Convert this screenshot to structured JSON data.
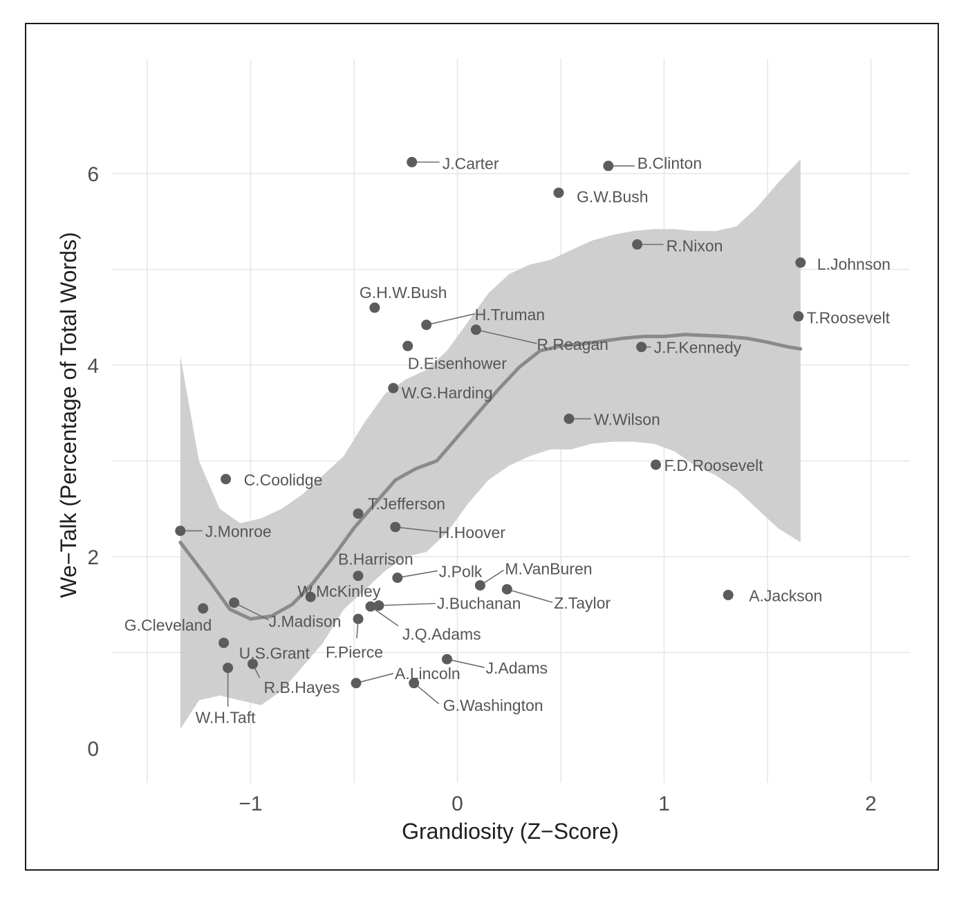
{
  "chart_data": {
    "type": "scatter",
    "title": "",
    "xlabel": "Grandiosity (Z−Score)",
    "ylabel": "We−Talk (Percentage of Total Words)",
    "xlim": [
      -1.5,
      2.2
    ],
    "ylim": [
      -0.6,
      7.0
    ],
    "x_ticks": [
      -1,
      0,
      1,
      2
    ],
    "x_tick_labels": [
      "−1",
      "0",
      "1",
      "2"
    ],
    "y_ticks": [
      0,
      2,
      4,
      6
    ],
    "y_tick_labels": [
      "0",
      "2",
      "4",
      "6"
    ],
    "grid": true,
    "legend": "none",
    "points": [
      {
        "name": "J.Carter",
        "x": -0.22,
        "y": 6.12
      },
      {
        "name": "B.Clinton",
        "x": 0.73,
        "y": 6.08
      },
      {
        "name": "G.W.Bush",
        "x": 0.49,
        "y": 5.8
      },
      {
        "name": "R.Nixon",
        "x": 0.87,
        "y": 5.26
      },
      {
        "name": "L.Johnson",
        "x": 1.66,
        "y": 5.07
      },
      {
        "name": "T.Roosevelt",
        "x": 1.65,
        "y": 4.51
      },
      {
        "name": "G.H.W.Bush",
        "x": -0.4,
        "y": 4.6
      },
      {
        "name": "H.Truman",
        "x": -0.15,
        "y": 4.42
      },
      {
        "name": "R.Reagan",
        "x": 0.09,
        "y": 4.37
      },
      {
        "name": "D.Eisenhower",
        "x": -0.24,
        "y": 4.2
      },
      {
        "name": "J.F.Kennedy",
        "x": 0.89,
        "y": 4.19
      },
      {
        "name": "W.G.Harding",
        "x": -0.31,
        "y": 3.76
      },
      {
        "name": "W.Wilson",
        "x": 0.54,
        "y": 3.44
      },
      {
        "name": "F.D.Roosevelt",
        "x": 0.96,
        "y": 2.96
      },
      {
        "name": "C.Coolidge",
        "x": -1.12,
        "y": 2.81
      },
      {
        "name": "T.Jefferson",
        "x": -0.48,
        "y": 2.45
      },
      {
        "name": "H.Hoover",
        "x": -0.3,
        "y": 2.31
      },
      {
        "name": "J.Monroe",
        "x": -1.34,
        "y": 2.27
      },
      {
        "name": "B.Harrison",
        "x": -0.48,
        "y": 1.8
      },
      {
        "name": "J.Polk",
        "x": -0.29,
        "y": 1.78
      },
      {
        "name": "M.VanBuren",
        "x": 0.11,
        "y": 1.7
      },
      {
        "name": "Z.Taylor",
        "x": 0.24,
        "y": 1.66
      },
      {
        "name": "A.Jackson",
        "x": 1.31,
        "y": 1.6
      },
      {
        "name": "W.McKinley",
        "x": -0.71,
        "y": 1.58
      },
      {
        "name": "J.Madison",
        "x": -1.08,
        "y": 1.52
      },
      {
        "name": "G.Cleveland",
        "x": -1.23,
        "y": 1.46
      },
      {
        "name": "J.Buchanan",
        "x": -0.38,
        "y": 1.49
      },
      {
        "name": "J.Q.Adams",
        "x": -0.42,
        "y": 1.48
      },
      {
        "name": "F.Pierce",
        "x": -0.48,
        "y": 1.35
      },
      {
        "name": "U.S.Grant",
        "x": -1.13,
        "y": 1.1
      },
      {
        "name": "J.Adams",
        "x": -0.05,
        "y": 0.93
      },
      {
        "name": "R.B.Hayes",
        "x": -0.99,
        "y": 0.88
      },
      {
        "name": "W.H.Taft",
        "x": -1.11,
        "y": 0.84
      },
      {
        "name": "A.Lincoln",
        "x": -0.49,
        "y": 0.68
      },
      {
        "name": "G.Washington",
        "x": -0.21,
        "y": 0.68
      }
    ],
    "smooth_line": {
      "x": [
        -1.34,
        -1.2,
        -1.1,
        -1.0,
        -0.9,
        -0.8,
        -0.7,
        -0.6,
        -0.5,
        -0.4,
        -0.3,
        -0.2,
        -0.1,
        0.0,
        0.1,
        0.2,
        0.3,
        0.4,
        0.5,
        0.6,
        0.7,
        0.8,
        0.9,
        1.0,
        1.1,
        1.2,
        1.3,
        1.4,
        1.5,
        1.6,
        1.66
      ],
      "y": [
        2.15,
        1.75,
        1.45,
        1.35,
        1.38,
        1.5,
        1.72,
        2.0,
        2.3,
        2.55,
        2.8,
        2.92,
        3.0,
        3.25,
        3.5,
        3.75,
        3.98,
        4.15,
        4.2,
        4.22,
        4.25,
        4.28,
        4.3,
        4.3,
        4.32,
        4.31,
        4.3,
        4.28,
        4.24,
        4.19,
        4.17
      ]
    },
    "confidence_band": {
      "x": [
        -1.34,
        -1.25,
        -1.15,
        -1.05,
        -0.95,
        -0.85,
        -0.75,
        -0.65,
        -0.55,
        -0.45,
        -0.35,
        -0.25,
        -0.15,
        -0.05,
        0.05,
        0.15,
        0.25,
        0.35,
        0.45,
        0.55,
        0.65,
        0.75,
        0.85,
        0.95,
        1.05,
        1.15,
        1.25,
        1.35,
        1.45,
        1.55,
        1.66
      ],
      "upper": [
        4.1,
        3.0,
        2.5,
        2.35,
        2.4,
        2.5,
        2.65,
        2.85,
        3.05,
        3.4,
        3.7,
        3.85,
        3.95,
        4.15,
        4.45,
        4.75,
        4.95,
        5.05,
        5.1,
        5.2,
        5.3,
        5.36,
        5.4,
        5.42,
        5.42,
        5.4,
        5.4,
        5.45,
        5.65,
        5.9,
        6.15
      ],
      "lower": [
        0.2,
        0.5,
        0.55,
        0.5,
        0.45,
        0.6,
        0.85,
        1.1,
        1.45,
        1.65,
        1.85,
        2.0,
        2.05,
        2.25,
        2.55,
        2.8,
        2.95,
        3.05,
        3.12,
        3.12,
        3.18,
        3.2,
        3.2,
        3.18,
        3.1,
        2.95,
        2.85,
        2.7,
        2.5,
        2.3,
        2.15
      ]
    }
  }
}
